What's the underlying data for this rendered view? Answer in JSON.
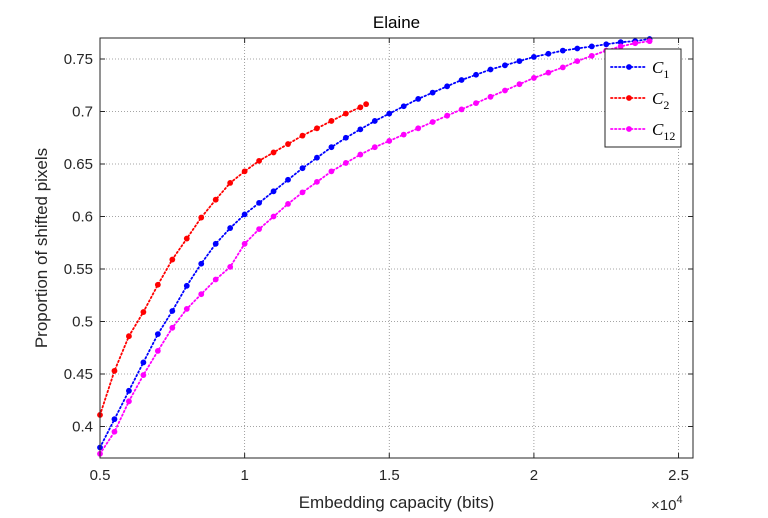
{
  "chart_data": {
    "type": "line",
    "title": "Elaine",
    "xlabel": "Embedding capacity (bits)",
    "ylabel": "Proportion of shifted pixels",
    "x_exponent_label": "×10",
    "x_exponent_power": "4",
    "xlim": [
      0.5,
      2.55
    ],
    "ylim": [
      0.37,
      0.77
    ],
    "xticks": [
      0.5,
      1,
      1.5,
      2,
      2.5
    ],
    "xtick_labels": [
      "0.5",
      "1",
      "1.5",
      "2",
      "2.5"
    ],
    "yticks": [
      0.4,
      0.45,
      0.5,
      0.55,
      0.6,
      0.65,
      0.7,
      0.75
    ],
    "ytick_labels": [
      "0.4",
      "0.45",
      "0.5",
      "0.55",
      "0.6",
      "0.65",
      "0.7",
      "0.75"
    ],
    "grid": true,
    "legend_position": "top-right",
    "series": [
      {
        "name": "C",
        "subscript": "1",
        "color": "#0000ff",
        "x": [
          0.5,
          0.55,
          0.6,
          0.65,
          0.7,
          0.75,
          0.8,
          0.85,
          0.9,
          0.95,
          1.0,
          1.05,
          1.1,
          1.15,
          1.2,
          1.25,
          1.3,
          1.35,
          1.4,
          1.45,
          1.5,
          1.55,
          1.6,
          1.65,
          1.7,
          1.75,
          1.8,
          1.85,
          1.9,
          1.95,
          2.0,
          2.05,
          2.1,
          2.15,
          2.2,
          2.25,
          2.3,
          2.35,
          2.4
        ],
        "y": [
          0.38,
          0.407,
          0.434,
          0.461,
          0.488,
          0.51,
          0.534,
          0.555,
          0.574,
          0.589,
          0.602,
          0.613,
          0.624,
          0.635,
          0.646,
          0.656,
          0.666,
          0.675,
          0.683,
          0.691,
          0.698,
          0.705,
          0.712,
          0.718,
          0.724,
          0.73,
          0.735,
          0.74,
          0.744,
          0.748,
          0.752,
          0.755,
          0.758,
          0.76,
          0.762,
          0.764,
          0.766,
          0.767,
          0.769
        ]
      },
      {
        "name": "C",
        "subscript": "2",
        "color": "#ff0000",
        "x": [
          0.5,
          0.55,
          0.6,
          0.65,
          0.7,
          0.75,
          0.8,
          0.85,
          0.9,
          0.95,
          1.0,
          1.05,
          1.1,
          1.15,
          1.2,
          1.25,
          1.3,
          1.35,
          1.4,
          1.42
        ],
        "y": [
          0.411,
          0.453,
          0.486,
          0.509,
          0.535,
          0.559,
          0.579,
          0.599,
          0.616,
          0.632,
          0.643,
          0.653,
          0.661,
          0.669,
          0.677,
          0.684,
          0.691,
          0.698,
          0.704,
          0.707
        ]
      },
      {
        "name": "C",
        "subscript": "12",
        "color": "#ff00ff",
        "x": [
          0.5,
          0.55,
          0.6,
          0.65,
          0.7,
          0.75,
          0.8,
          0.85,
          0.9,
          0.95,
          1.0,
          1.05,
          1.1,
          1.15,
          1.2,
          1.25,
          1.3,
          1.35,
          1.4,
          1.45,
          1.5,
          1.55,
          1.6,
          1.65,
          1.7,
          1.75,
          1.8,
          1.85,
          1.9,
          1.95,
          2.0,
          2.05,
          2.1,
          2.15,
          2.2,
          2.25,
          2.3,
          2.35,
          2.4
        ],
        "y": [
          0.374,
          0.395,
          0.424,
          0.449,
          0.472,
          0.494,
          0.512,
          0.526,
          0.54,
          0.552,
          0.574,
          0.588,
          0.6,
          0.612,
          0.623,
          0.633,
          0.643,
          0.651,
          0.659,
          0.666,
          0.672,
          0.678,
          0.684,
          0.69,
          0.696,
          0.702,
          0.708,
          0.714,
          0.72,
          0.726,
          0.732,
          0.737,
          0.742,
          0.748,
          0.753,
          0.758,
          0.762,
          0.765,
          0.767
        ]
      }
    ]
  }
}
